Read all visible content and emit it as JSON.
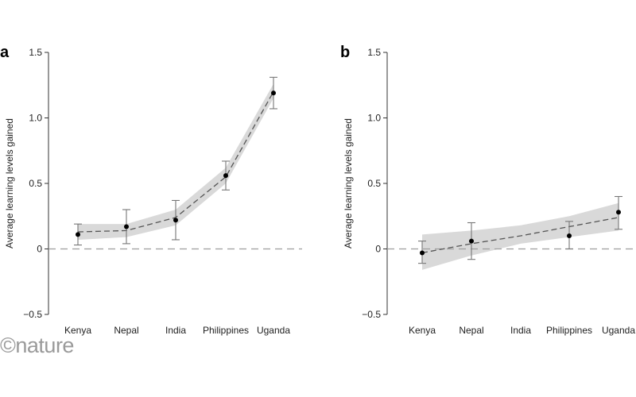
{
  "watermark": "©nature",
  "chart_data": [
    {
      "type": "line",
      "panel": "a",
      "ylabel": "Average learning levels gained",
      "xlabel": "",
      "categories": [
        "Kenya",
        "Nepal",
        "India",
        "Philippines",
        "Uganda"
      ],
      "ylim": [
        -0.5,
        1.5
      ],
      "yticks": [
        -0.5,
        0,
        0.5,
        1.0,
        1.5
      ],
      "ytick_labels": [
        "−0.5",
        "0",
        "0.5",
        "1.0",
        "1.5"
      ],
      "points": [
        0.11,
        0.17,
        0.22,
        0.56,
        1.19
      ],
      "error_bars": [
        [
          0.03,
          0.19
        ],
        [
          0.04,
          0.3
        ],
        [
          0.07,
          0.37
        ],
        [
          0.45,
          0.67
        ],
        [
          1.07,
          1.31
        ]
      ],
      "fit_line": [
        0.13,
        0.14,
        0.24,
        0.55,
        1.2
      ],
      "confidence_band": [
        [
          0.07,
          0.19
        ],
        [
          0.09,
          0.19
        ],
        [
          0.18,
          0.3
        ],
        [
          0.5,
          0.62
        ],
        [
          1.15,
          1.26
        ]
      ],
      "reference_line": 0,
      "colors": {
        "points": "#000000",
        "fit": "#555555",
        "band": "#d9d9d9",
        "errorbar": "#777777",
        "reference": "#9e9e9e"
      }
    },
    {
      "type": "line",
      "panel": "b",
      "ylabel": "Average learning levels gained",
      "xlabel": "",
      "categories": [
        "Kenya",
        "Nepal",
        "India",
        "Philippines",
        "Uganda"
      ],
      "ylim": [
        -0.5,
        1.5
      ],
      "yticks": [
        -0.5,
        0,
        0.5,
        1.0,
        1.5
      ],
      "ytick_labels": [
        "−0.5",
        "0",
        "0.5",
        "1.0",
        "1.5"
      ],
      "points": [
        -0.03,
        0.06,
        null,
        0.1,
        0.28
      ],
      "error_bars": [
        [
          -0.11,
          0.06
        ],
        [
          -0.08,
          0.2
        ],
        null,
        [
          0.0,
          0.21
        ],
        [
          0.15,
          0.4
        ]
      ],
      "fit_line": [
        -0.03,
        0.04,
        0.1,
        0.17,
        0.24
      ],
      "confidence_band": [
        [
          -0.16,
          0.11
        ],
        [
          -0.05,
          0.14
        ],
        [
          0.04,
          0.18
        ],
        [
          0.09,
          0.25
        ],
        [
          0.14,
          0.35
        ]
      ],
      "reference_line": 0,
      "colors": {
        "points": "#000000",
        "fit": "#555555",
        "band": "#d9d9d9",
        "errorbar": "#777777",
        "reference": "#9e9e9e"
      }
    }
  ]
}
